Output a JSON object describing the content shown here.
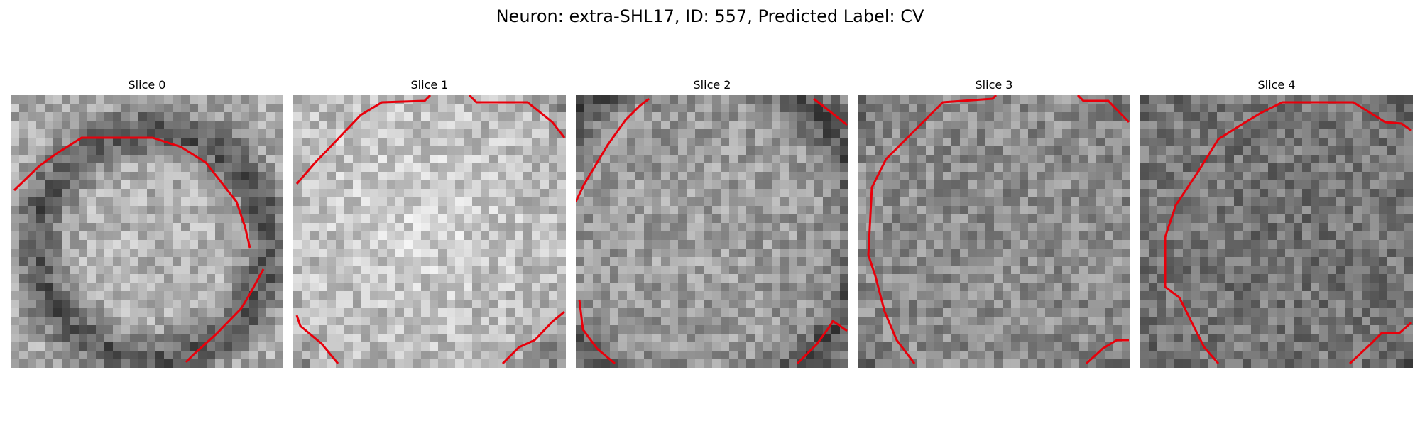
{
  "figure": {
    "title": "Neuron: extra-SHL17, ID: 557, Predicted Label: CV"
  },
  "panels": [
    {
      "title": "Slice 0"
    },
    {
      "title": "Slice 1"
    },
    {
      "title": "Slice 2"
    },
    {
      "title": "Slice 3"
    },
    {
      "title": "Slice 4"
    }
  ],
  "colors": {
    "contour": "#e8000b"
  }
}
